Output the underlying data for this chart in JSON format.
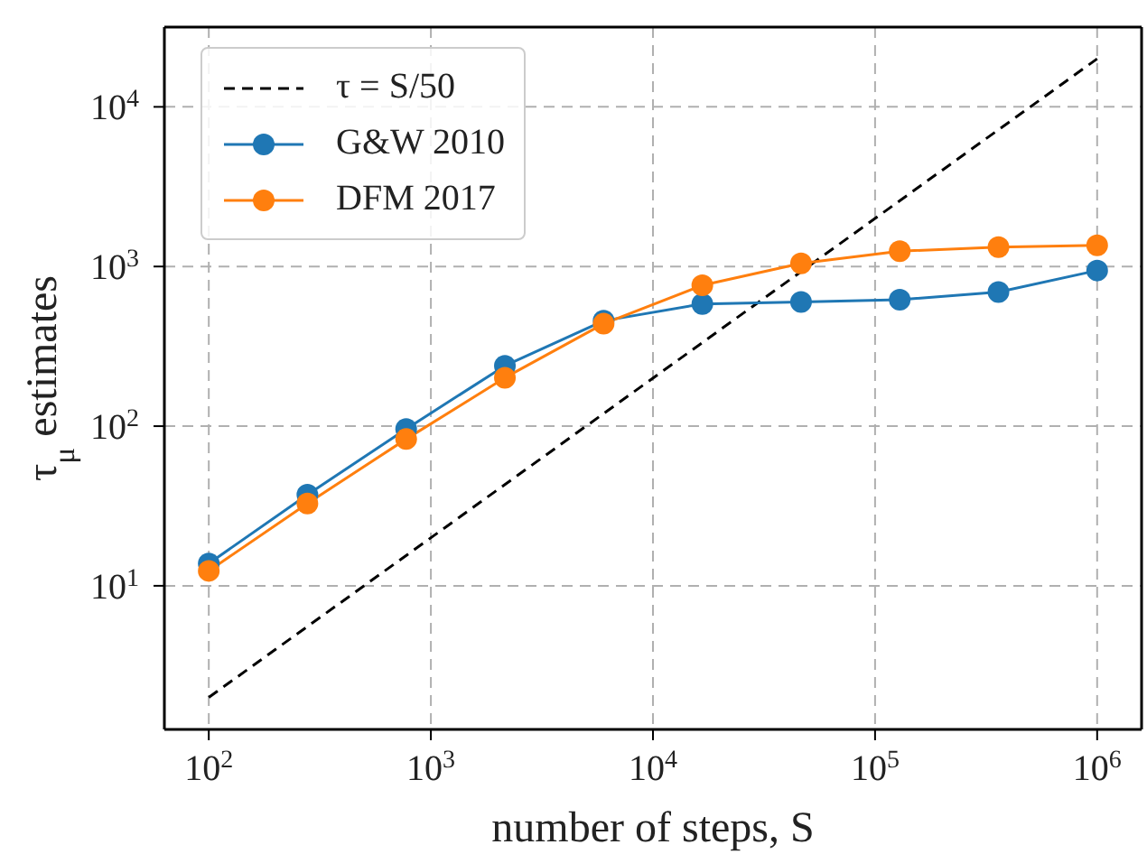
{
  "chart_data": {
    "type": "line",
    "xlabel": "number of steps, S",
    "ylabel": "τ$_{μ}$ estimates",
    "x": [
      100,
      278,
      774,
      2154,
      5995,
      16681,
      46416,
      129155,
      359381,
      1000000
    ],
    "series": [
      {
        "name": "τ = S/50",
        "type": "line",
        "color": "#000000",
        "line_style": "dashed",
        "marker": "none",
        "x": [
          100,
          1000000
        ],
        "values": [
          2,
          20000
        ]
      },
      {
        "name": "G&W 2010",
        "color": "#1f77b4",
        "marker": "circle",
        "values": [
          13.8,
          37.2,
          96,
          239,
          457,
          583,
          599,
          619,
          692,
          944
        ]
      },
      {
        "name": "DFM 2017",
        "color": "#ff7f0e",
        "marker": "circle",
        "values": [
          12.4,
          32.8,
          83,
          201,
          438,
          762,
          1047,
          1248,
          1324,
          1358
        ]
      }
    ],
    "log": "xy",
    "xlim": [
      63.1,
      1585000
    ],
    "ylim": [
      1.26,
      31600
    ],
    "xticks": [
      {
        "value": 100,
        "label": "10$^{2}$"
      },
      {
        "value": 1000,
        "label": "10$^{3}$"
      },
      {
        "value": 10000,
        "label": "10$^{4}$"
      },
      {
        "value": 100000,
        "label": "10$^{5}$"
      },
      {
        "value": 1000000,
        "label": "10$^{6}$"
      }
    ],
    "yticks": [
      {
        "value": 10,
        "label": "10$^{1}$"
      },
      {
        "value": 100,
        "label": "10$^{2}$"
      },
      {
        "value": 1000,
        "label": "10$^{3}$"
      },
      {
        "value": 10000,
        "label": "10$^{4}$"
      }
    ],
    "grid": true,
    "legend": "top left",
    "line_style": "solid"
  }
}
